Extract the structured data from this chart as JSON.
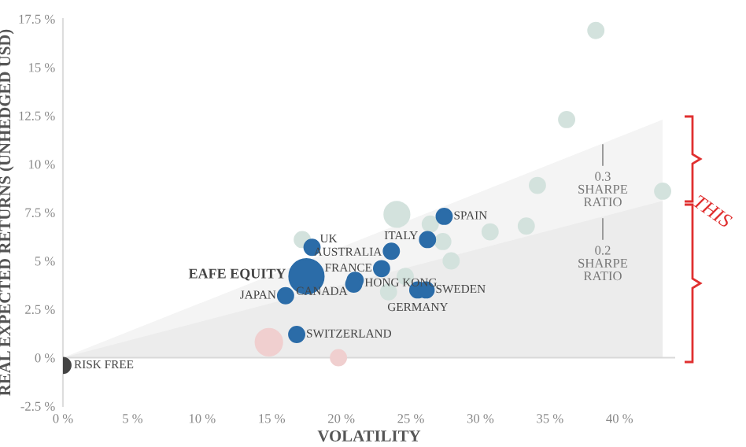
{
  "chart_data": {
    "type": "bubble",
    "xlabel": "VOLATILITY",
    "ylabel": "REAL EXPECTED RETURNS (UNHEDGED USD)",
    "xlim": [
      0,
      44
    ],
    "ylim": [
      -2.5,
      17.5
    ],
    "xticks": [
      {
        "value": 0,
        "label": "0 %"
      },
      {
        "value": 5,
        "label": "5 %"
      },
      {
        "value": 10,
        "label": "10 %"
      },
      {
        "value": 15,
        "label": "15 %"
      },
      {
        "value": 20,
        "label": "20 %"
      },
      {
        "value": 25,
        "label": "25 %"
      },
      {
        "value": 30,
        "label": "30 %"
      },
      {
        "value": 35,
        "label": "35 %"
      },
      {
        "value": 40,
        "label": "40 %"
      }
    ],
    "yticks": [
      {
        "value": -2.5,
        "label": "-2.5 %"
      },
      {
        "value": 0,
        "label": "0 %"
      },
      {
        "value": 2.5,
        "label": "2.5 %"
      },
      {
        "value": 5,
        "label": "5 %"
      },
      {
        "value": 7.5,
        "label": "7.5 %"
      },
      {
        "value": 10,
        "label": "10 %"
      },
      {
        "value": 12.5,
        "label": "12.5 %"
      },
      {
        "value": 15,
        "label": "15 %"
      },
      {
        "value": 17.5,
        "label": "17.5 %"
      }
    ],
    "grid": false,
    "legend": false,
    "ref_lines": [
      {
        "axis": "y",
        "value": 0,
        "color": "#d9d9d9"
      }
    ],
    "series": [
      {
        "type": "area",
        "color": "#f4f4f4",
        "x": [
          0,
          43.1
        ],
        "values": [
          0,
          12.3
        ]
      },
      {
        "type": "area",
        "color": "#ececec",
        "x": [
          0,
          43.1
        ],
        "values": [
          0,
          8.1
        ]
      },
      {
        "color": "#d3e2dd",
        "x": [
          38.3,
          36.2,
          34.1,
          43.1,
          33.3,
          30.7,
          27.9,
          24.0,
          26.4,
          27.3,
          24.6,
          23.4,
          17.2
        ],
        "values": [
          16.9,
          12.3,
          8.9,
          8.6,
          6.8,
          6.5,
          5.0,
          7.4,
          6.9,
          6.0,
          4.2,
          3.4,
          6.1
        ],
        "sizes": [
          0.2,
          0.2,
          0.2,
          0.2,
          0.2,
          0.2,
          0.2,
          0.53,
          0.2,
          0.2,
          0.2,
          0.2,
          0.2
        ]
      },
      {
        "color": "#f0cfcf",
        "x": [
          14.8,
          19.8
        ],
        "values": [
          0.8,
          0.0
        ],
        "sizes": [
          0.6,
          0.2
        ]
      },
      {
        "color": "#444444",
        "x": [
          0
        ],
        "values": [
          -0.4
        ],
        "sizes": [
          0.2
        ]
      },
      {
        "color": "#2b6ca8",
        "x": [
          17.9,
          23.6,
          26.2,
          27.4,
          22.9,
          21.0,
          20.9,
          17.5,
          16.0,
          16.8,
          25.5,
          26.1
        ],
        "values": [
          5.7,
          5.5,
          6.1,
          7.3,
          4.6,
          4.0,
          3.8,
          4.2,
          3.2,
          1.2,
          3.5,
          3.5
        ],
        "sizes": [
          0.2,
          0.2,
          0.2,
          0.2,
          0.2,
          0.2,
          0.2,
          1,
          0.2,
          0.2,
          0.2,
          0.2
        ]
      }
    ],
    "annotations": [
      {
        "text": "RISK FREE",
        "x": 0,
        "y": -0.4
      },
      {
        "text": "UK",
        "x": 17.9,
        "y": 5.7
      },
      {
        "text": "AUSTRALIA",
        "x": 23.6,
        "y": 5.5
      },
      {
        "text": "ITALY",
        "x": 26.2,
        "y": 6.1
      },
      {
        "text": "SPAIN",
        "x": 27.4,
        "y": 7.3
      },
      {
        "text": "FRANCE",
        "x": 22.9,
        "y": 4.6
      },
      {
        "text": "HONG KONG",
        "x": 21.0,
        "y": 4.0
      },
      {
        "text": "CANADA",
        "x": 20.9,
        "y": 3.8
      },
      {
        "text": "EAFE EQUITY",
        "x": 17.5,
        "y": 4.2
      },
      {
        "text": "JAPAN",
        "x": 16.0,
        "y": 3.2
      },
      {
        "text": "SWITZERLAND",
        "x": 16.8,
        "y": 1.2
      },
      {
        "text": "GERMANY",
        "x": 25.5,
        "y": 3.5
      },
      {
        "text": "SWEDEN",
        "x": 26.1,
        "y": 3.5
      },
      "0.3\nSHARPE\nRATIO",
      "0.2\nSHARPE\nRATIO",
      "THIS"
    ]
  }
}
